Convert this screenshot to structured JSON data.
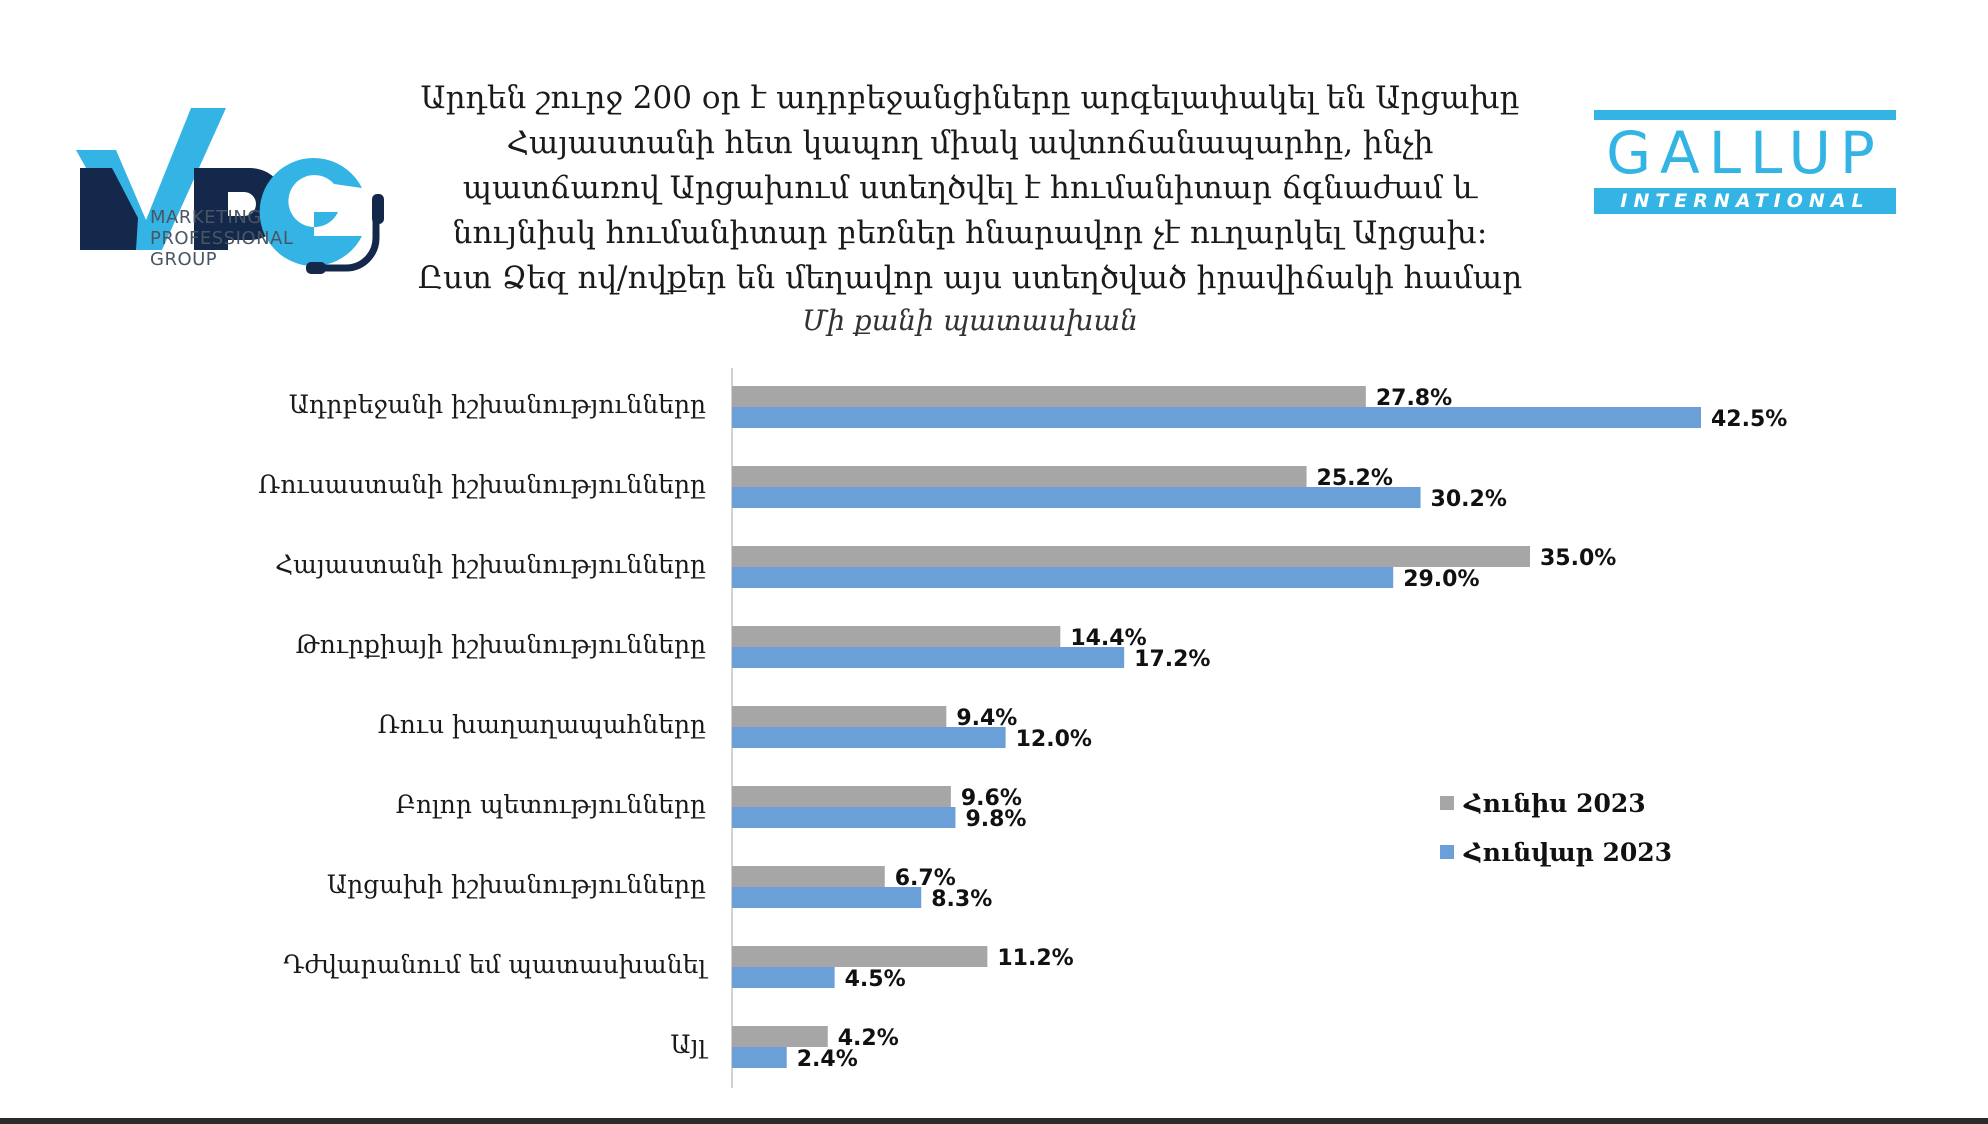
{
  "header": {
    "mpg_logo": {
      "letters": "MPG",
      "tagline_1": "MARKETING",
      "tagline_2": "PROFESSIONAL",
      "tagline_3": "GROUP",
      "colors": {
        "navy": "#13284a",
        "blue": "#33b4e5"
      }
    },
    "gallup_logo": {
      "word": "GALLUP",
      "subword": "INTERNATIONAL",
      "color": "#33b4e5"
    }
  },
  "chart_data": {
    "type": "bar",
    "orientation": "horizontal",
    "title_lines": [
      "Արդեն շուրջ 200 օր է ադրբեջանցիները արգելափակել են Արցախը",
      "Հայաստանի հետ կապող միակ ավտոճանապարհը, ինչի",
      "պատճառով Արցախում ստեղծվել է հումանիտար ճգնաժամ և",
      "նույնիսկ հումանիտար բեռներ հնարավոր չէ ուղարկել Արցախ:",
      "Ըստ Ձեզ ով/ովքեր են մեղավոր այս ստեղծված իրավիճակի համար"
    ],
    "subtitle": "Մի քանի պատասխան",
    "categories": [
      "Ադրբեջանի իշխանությունները",
      "Ռուսաստանի իշխանությունները",
      "Հայաստանի իշխանությունները",
      "Թուրքիայի իշխանությունները",
      "Ռուս խաղաղապահները",
      "Բոլոր պետությունները",
      "Արցախի իշխանությունները",
      "Դժվարանում եմ պատասխանել",
      "Այլ"
    ],
    "series": [
      {
        "name": "Հունիս 2023",
        "color": "#a6a6a6",
        "values": [
          27.8,
          25.2,
          35.0,
          14.4,
          9.4,
          9.6,
          6.7,
          11.2,
          4.2
        ]
      },
      {
        "name": "Հունվար 2023",
        "color": "#6a9fd8",
        "values": [
          42.5,
          30.2,
          29.0,
          17.2,
          12.0,
          9.8,
          8.3,
          4.5,
          2.4
        ]
      }
    ],
    "value_suffix": "%",
    "xlim": [
      0,
      50
    ],
    "grid": false,
    "legend_position": "right"
  }
}
